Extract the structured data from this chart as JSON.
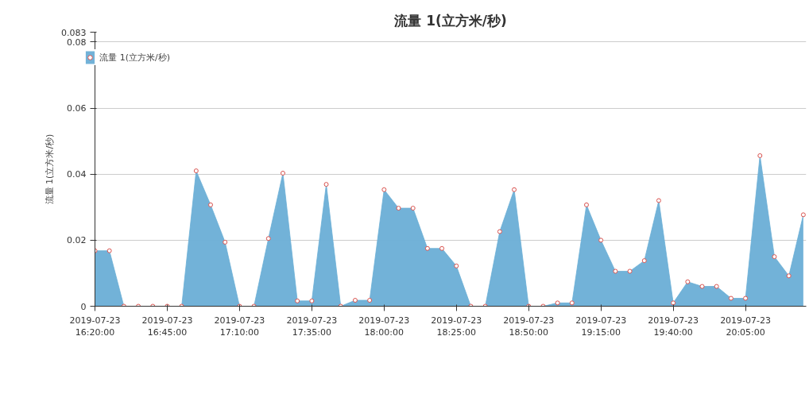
{
  "chart_data": {
    "type": "area",
    "title": "流量 1(立方米/秒)",
    "ylabel": "流量 1(立方米/秒)",
    "x": [
      "2019-07-23T16:20",
      "2019-07-23T16:25",
      "2019-07-23T16:30",
      "2019-07-23T16:35",
      "2019-07-23T16:40",
      "2019-07-23T16:45",
      "2019-07-23T16:50",
      "2019-07-23T16:55",
      "2019-07-23T17:00",
      "2019-07-23T17:05",
      "2019-07-23T17:10",
      "2019-07-23T17:15",
      "2019-07-23T17:20",
      "2019-07-23T17:25",
      "2019-07-23T17:30",
      "2019-07-23T17:35",
      "2019-07-23T17:40",
      "2019-07-23T17:45",
      "2019-07-23T17:50",
      "2019-07-23T17:55",
      "2019-07-23T18:00",
      "2019-07-23T18:05",
      "2019-07-23T18:10",
      "2019-07-23T18:15",
      "2019-07-23T18:20",
      "2019-07-23T18:25",
      "2019-07-23T18:30",
      "2019-07-23T18:35",
      "2019-07-23T18:40",
      "2019-07-23T18:45",
      "2019-07-23T18:50",
      "2019-07-23T18:55",
      "2019-07-23T19:00",
      "2019-07-23T19:05",
      "2019-07-23T19:10",
      "2019-07-23T19:15",
      "2019-07-23T19:20",
      "2019-07-23T19:25",
      "2019-07-23T19:30",
      "2019-07-23T19:35",
      "2019-07-23T19:40",
      "2019-07-23T19:45",
      "2019-07-23T19:50",
      "2019-07-23T19:55",
      "2019-07-23T20:00",
      "2019-07-23T20:05",
      "2019-07-23T20:10",
      "2019-07-23T20:15",
      "2019-07-23T20:20",
      "2019-07-23T20:25"
    ],
    "series": [
      {
        "name": "流量 1(立方米/秒)",
        "color": "#6aaed6",
        "values": [
          0.0168,
          0.0168,
          0,
          0,
          0,
          0,
          0,
          0.041,
          0.0307,
          0.0194,
          0,
          0,
          0.0205,
          0.0403,
          0.0016,
          0.0016,
          0.0369,
          0,
          0.0018,
          0.0018,
          0.0353,
          0.0297,
          0.0297,
          0.0175,
          0.0175,
          0.0122,
          0,
          0,
          0.0226,
          0.0353,
          0,
          0,
          0.001,
          0.001,
          0.0307,
          0.02,
          0.0106,
          0.0106,
          0.0138,
          0.032,
          0.001,
          0.0074,
          0.006,
          0.006,
          0.0024,
          0.0024,
          0.0456,
          0.015,
          0.0092,
          0.0277
        ]
      }
    ],
    "xlim": [
      "2019-07-23T16:20",
      "2019-07-23T20:26"
    ],
    "xticks": [
      {
        "value": "2019-07-23T16:20",
        "label": "2019-07-23\n16:20:00"
      },
      {
        "value": "2019-07-23T16:45",
        "label": "2019-07-23\n16:45:00"
      },
      {
        "value": "2019-07-23T17:10",
        "label": "2019-07-23\n17:10:00"
      },
      {
        "value": "2019-07-23T17:35",
        "label": "2019-07-23\n17:35:00"
      },
      {
        "value": "2019-07-23T18:00",
        "label": "2019-07-23\n18:00:00"
      },
      {
        "value": "2019-07-23T18:25",
        "label": "2019-07-23\n18:25:00"
      },
      {
        "value": "2019-07-23T18:50",
        "label": "2019-07-23\n18:50:00"
      },
      {
        "value": "2019-07-23T19:15",
        "label": "2019-07-23\n19:15:00"
      },
      {
        "value": "2019-07-23T19:40",
        "label": "2019-07-23\n19:40:00"
      },
      {
        "value": "2019-07-23T20:05",
        "label": "2019-07-23\n20:05:00"
      }
    ],
    "ylim": [
      0,
      0.083
    ],
    "yticks": [
      0,
      0.02,
      0.04,
      0.06,
      0.08,
      0.083
    ],
    "grid": "y",
    "legend": "top left",
    "marker": "circle"
  }
}
